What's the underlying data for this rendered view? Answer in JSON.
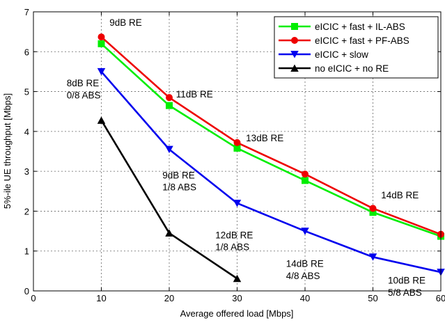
{
  "chart_data": {
    "type": "line",
    "xlabel": "Average offered load [Mbps]",
    "ylabel": "5%-ile UE throughput [Mbps]",
    "xlim": [
      0,
      60
    ],
    "ylim": [
      0,
      7
    ],
    "xticks": [
      0,
      10,
      20,
      30,
      40,
      50,
      60
    ],
    "yticks": [
      0,
      1,
      2,
      3,
      4,
      5,
      6,
      7
    ],
    "grid": true,
    "legend_position": "top-right",
    "series": [
      {
        "name": "eICIC + fast + IL-ABS",
        "color": "#00ee00",
        "marker": "square",
        "x": [
          10,
          20,
          30,
          40,
          50,
          60
        ],
        "y": [
          6.2,
          4.65,
          3.58,
          2.77,
          1.97,
          1.37
        ]
      },
      {
        "name": "eICIC + fast + PF-ABS",
        "color": "#ee0000",
        "marker": "circle",
        "x": [
          10,
          20,
          30,
          40,
          50,
          60
        ],
        "y": [
          6.37,
          4.85,
          3.72,
          2.93,
          2.07,
          1.42
        ]
      },
      {
        "name": "eICIC + slow",
        "color": "#0000ee",
        "marker": "triangle-down",
        "x": [
          10,
          20,
          30,
          40,
          50,
          60
        ],
        "y": [
          5.5,
          3.55,
          2.2,
          1.5,
          0.85,
          0.47
        ]
      },
      {
        "name": "no eICIC + no RE",
        "color": "#000000",
        "marker": "triangle-up",
        "x": [
          10,
          20,
          30
        ],
        "y": [
          4.28,
          1.45,
          0.31
        ]
      }
    ],
    "annotations": [
      {
        "text": "9dB RE",
        "x": 11.2,
        "y": 6.65
      },
      {
        "text": "11dB RE",
        "x": 21.0,
        "y": 4.85
      },
      {
        "text": "13dB RE",
        "x": 31.3,
        "y": 3.75
      },
      {
        "text": "14dB RE",
        "x": 51.2,
        "y": 2.32
      },
      {
        "text": "8dB RE",
        "x": 4.9,
        "y": 5.13
      },
      {
        "text": "0/8 ABS",
        "x": 4.9,
        "y": 4.83
      },
      {
        "text": "9dB RE",
        "x": 19.0,
        "y": 2.82
      },
      {
        "text": "1/8 ABS",
        "x": 19.0,
        "y": 2.52
      },
      {
        "text": "12dB RE",
        "x": 26.8,
        "y": 1.32
      },
      {
        "text": "1/8 ABS",
        "x": 26.8,
        "y": 1.02
      },
      {
        "text": "14dB RE",
        "x": 37.2,
        "y": 0.6
      },
      {
        "text": "4/8 ABS",
        "x": 37.2,
        "y": 0.3
      },
      {
        "text": "10dB RE",
        "x": 52.2,
        "y": 0.18
      },
      {
        "text": "5/8 ABS",
        "x": 52.2,
        "y": -0.12
      }
    ]
  }
}
